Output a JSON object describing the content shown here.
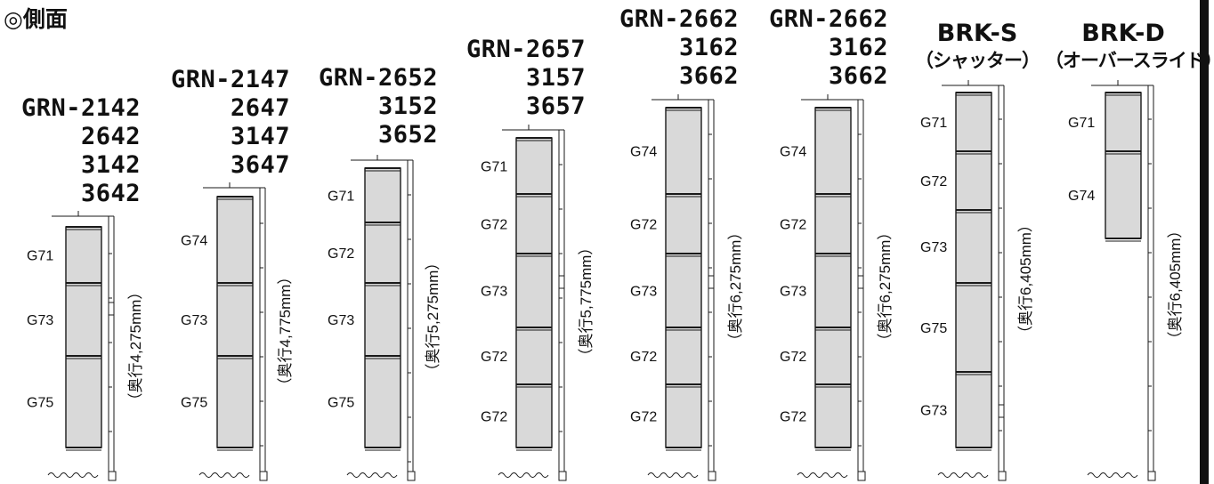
{
  "heading": "◎側面",
  "columns": [
    {
      "models": [
        "GRN-2142",
        "2642",
        "3142",
        "3642"
      ],
      "depth_label": "（奥行4,275mm）",
      "slots": [
        {
          "code": "G71"
        },
        {
          "code": "G73"
        },
        {
          "code": "G75"
        }
      ]
    },
    {
      "models": [
        "GRN-2147",
        "2647",
        "3147",
        "3647"
      ],
      "depth_label": "（奥行4,775mm）",
      "slots": [
        {
          "code": "G74"
        },
        {
          "code": "G73"
        },
        {
          "code": "G75"
        }
      ]
    },
    {
      "models": [
        "GRN-2652",
        "3152",
        "3652"
      ],
      "depth_label": "（奥行5,275mm）",
      "slots": [
        {
          "code": "G71"
        },
        {
          "code": "G72"
        },
        {
          "code": "G73"
        },
        {
          "code": "G75"
        }
      ]
    },
    {
      "models": [
        "GRN-2657",
        "3157",
        "3657"
      ],
      "depth_label": "（奥行5,775mm）",
      "slots": [
        {
          "code": "G71"
        },
        {
          "code": "G72"
        },
        {
          "code": "G73"
        },
        {
          "code": "G72"
        },
        {
          "code": "G72"
        }
      ]
    },
    {
      "models": [
        "GRN-2662",
        "3162",
        "3662"
      ],
      "depth_label": "（奥行6,275mm）",
      "slots": [
        {
          "code": "G74"
        },
        {
          "code": "G72"
        },
        {
          "code": "G73"
        },
        {
          "code": "G72"
        },
        {
          "code": "G72"
        }
      ]
    },
    {
      "models": [
        "GRN-2662",
        "3162",
        "3662"
      ],
      "depth_label": "（奥行6,275mm）",
      "slots": [
        {
          "code": "G74"
        },
        {
          "code": "G72"
        },
        {
          "code": "G73"
        },
        {
          "code": "G72"
        },
        {
          "code": "G72"
        }
      ]
    },
    {
      "models": [
        "BRK-S",
        "（シャッター）"
      ],
      "depth_label": "（奥行6,405mm）",
      "slots": [
        {
          "code": "G71"
        },
        {
          "code": "G72"
        },
        {
          "code": "G73"
        },
        {
          "code": "G75"
        },
        {
          "code": "G73"
        }
      ]
    },
    {
      "models": [
        "BRK-D",
        "（オーバースライド）"
      ],
      "depth_label": "（奥行6,405mm）",
      "slots": [
        {
          "code": "G71"
        },
        {
          "code": "G74"
        }
      ]
    }
  ],
  "colors": {
    "panel_fill": "#d9d9d9",
    "stroke": "#1a1a1a"
  }
}
